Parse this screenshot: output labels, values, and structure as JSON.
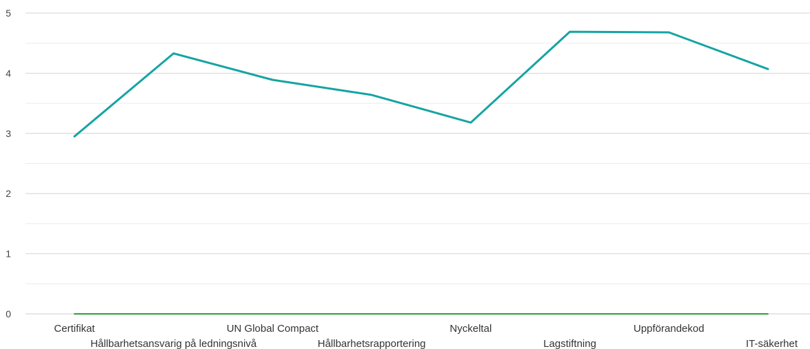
{
  "chart_data": {
    "type": "line",
    "title": "",
    "xlabel": "",
    "ylabel": "",
    "categories": [
      "Certifikat",
      "Hållbarhetsansvarig på ledningsnivå",
      "UN Global Compact",
      "Hållbarhetsrapportering",
      "Nyckeltal",
      "Lagstiftning",
      "Uppförandekod",
      "IT-säkerhet"
    ],
    "series": [
      {
        "values": [
          2.95,
          4.33,
          3.89,
          3.64,
          3.18,
          4.69,
          4.68,
          4.07
        ],
        "color": "#16a3a3"
      },
      {
        "values": [
          0,
          0,
          0,
          0,
          0,
          0,
          0,
          0
        ],
        "color": "#2e9e3a"
      }
    ],
    "ylim": [
      0,
      5
    ],
    "yticks": [
      "0",
      "1",
      "2",
      "3",
      "4",
      "5"
    ],
    "grid": true,
    "minor_grid": true,
    "legend": "none"
  }
}
